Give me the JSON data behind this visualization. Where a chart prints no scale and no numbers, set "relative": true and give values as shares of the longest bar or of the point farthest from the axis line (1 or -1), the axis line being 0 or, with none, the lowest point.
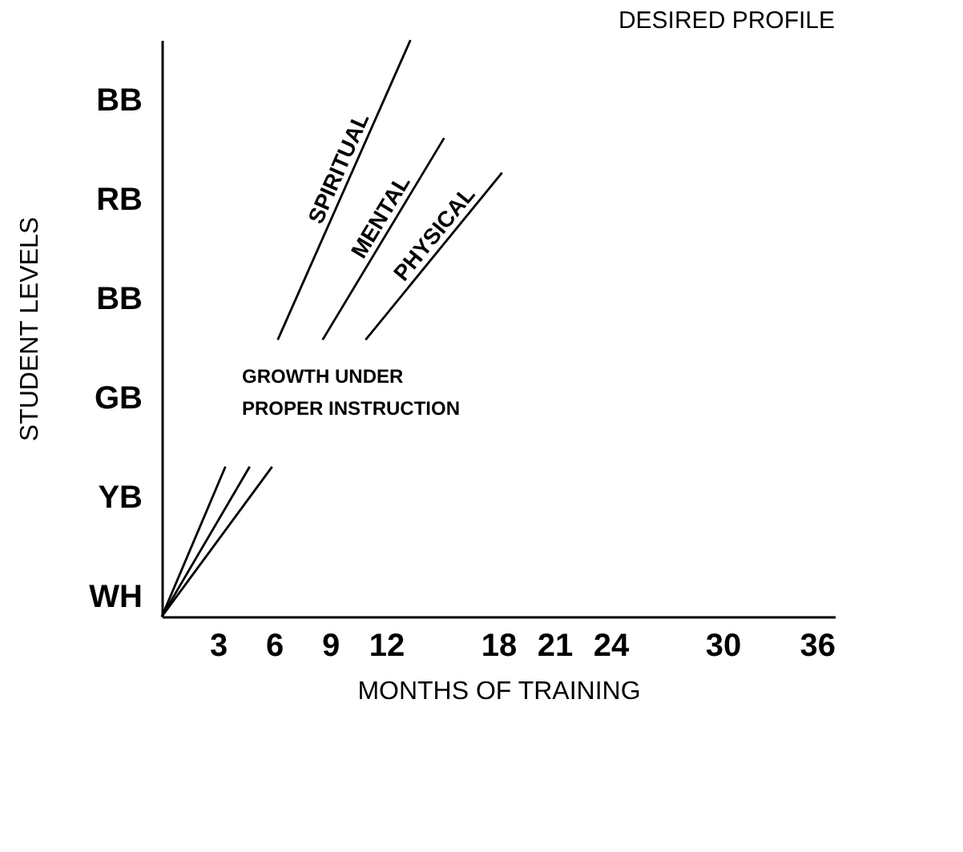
{
  "chart_data": {
    "type": "line",
    "title": "DESIRED PROFILE",
    "xlabel": "MONTHS OF TRAINING",
    "ylabel": "STUDENT LEVELS",
    "annotations": [
      "GROWTH UNDER",
      "PROPER INSTRUCTION",
      "WH",
      "YB",
      "GB",
      "BB",
      "RB",
      "BB"
    ],
    "xlim": [
      0,
      36
    ],
    "xticks": [
      3,
      6,
      9,
      12,
      18,
      21,
      24,
      30,
      36
    ],
    "relative": true,
    "grid": false,
    "line_style": "solid",
    "series": [
      {
        "name": "SPIRITUAL",
        "color": "#000000",
        "x": [
          6.2,
          13.3
        ],
        "values": [
          0.48,
          1.0
        ]
      },
      {
        "name": "MENTAL",
        "color": "#000000",
        "x": [
          8.6,
          15.1
        ],
        "values": [
          0.48,
          0.83
        ]
      },
      {
        "name": "PHYSICAL",
        "color": "#000000",
        "x": [
          10.9,
          18.2
        ],
        "values": [
          0.48,
          0.77
        ]
      },
      {
        "color": "#000000",
        "x": [
          0,
          3.4
        ],
        "values": [
          0,
          0.26
        ]
      },
      {
        "color": "#000000",
        "x": [
          0,
          4.7
        ],
        "values": [
          0,
          0.26
        ]
      },
      {
        "color": "#000000",
        "x": [
          0,
          5.9
        ],
        "values": [
          0,
          0.26
        ]
      }
    ]
  }
}
